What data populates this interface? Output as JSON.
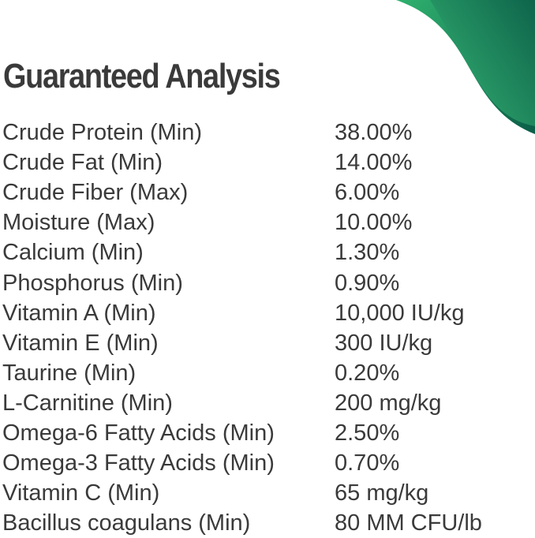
{
  "title": "Guaranteed Analysis",
  "colors": {
    "accent_dark": "#0b5e48",
    "accent_light": "#2fb06e"
  },
  "rows": [
    {
      "label": "Crude Protein (Min)",
      "value": "38.00%"
    },
    {
      "label": "Crude Fat (Min)",
      "value": "14.00%"
    },
    {
      "label": "Crude Fiber (Max)",
      "value": "6.00%"
    },
    {
      "label": "Moisture (Max)",
      "value": "10.00%"
    },
    {
      "label": "Calcium (Min)",
      "value": "1.30%"
    },
    {
      "label": "Phosphorus (Min)",
      "value": "0.90%"
    },
    {
      "label": "Vitamin A (Min)",
      "value": "10,000 IU/kg"
    },
    {
      "label": "Vitamin E (Min)",
      "value": "300 IU/kg"
    },
    {
      "label": "Taurine (Min)",
      "value": "0.20%"
    },
    {
      "label": "L-Carnitine (Min)",
      "value": "200 mg/kg"
    },
    {
      "label": "Omega-6 Fatty Acids (Min)",
      "value": "2.50%"
    },
    {
      "label": "Omega-3 Fatty Acids (Min)",
      "value": "0.70%"
    },
    {
      "label": "Vitamin C (Min)",
      "value": "65 mg/kg"
    },
    {
      "label": "Bacillus coagulans (Min)",
      "value": "80 MM CFU/lb"
    }
  ]
}
